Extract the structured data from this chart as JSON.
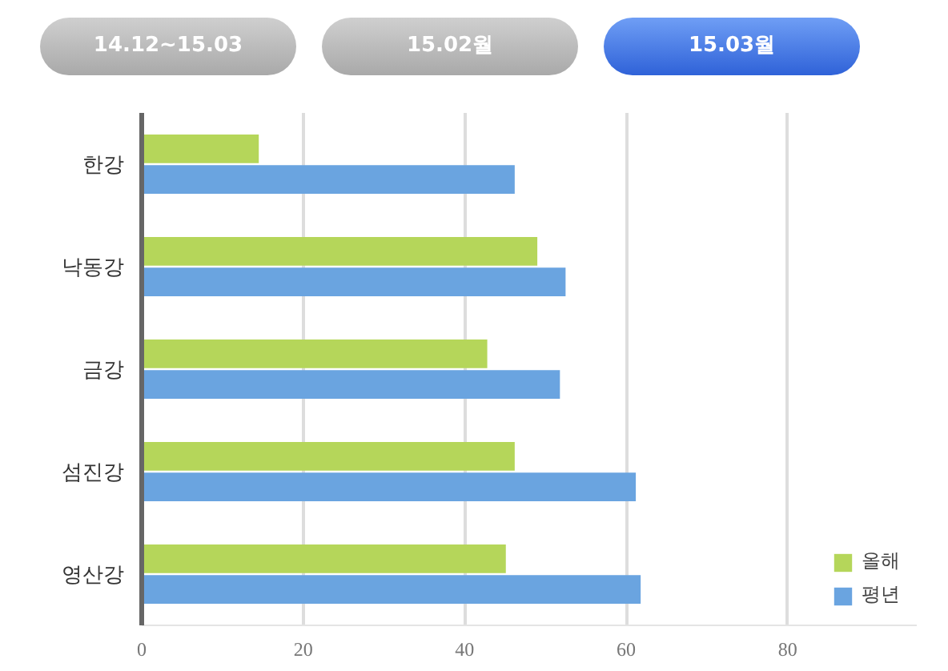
{
  "chart_data": {
    "type": "bar",
    "orientation": "horizontal",
    "categories": [
      "한강",
      "낙동강",
      "금강",
      "섬진강",
      "영산강"
    ],
    "series": [
      {
        "name": "올해",
        "color": "#b5d65a",
        "values": [
          14.5,
          49,
          42.8,
          46.2,
          45.1
        ]
      },
      {
        "name": "평년",
        "color": "#6aa4e0",
        "values": [
          46.2,
          52.5,
          51.8,
          61.2,
          61.8
        ]
      }
    ],
    "xlim": [
      0,
      96
    ],
    "xticks": [
      0,
      20,
      40,
      60,
      80
    ],
    "grid": "x",
    "legend": "bottom right",
    "annotations": [
      "14.12~15.03",
      "15.02월",
      "15.03월"
    ]
  }
}
